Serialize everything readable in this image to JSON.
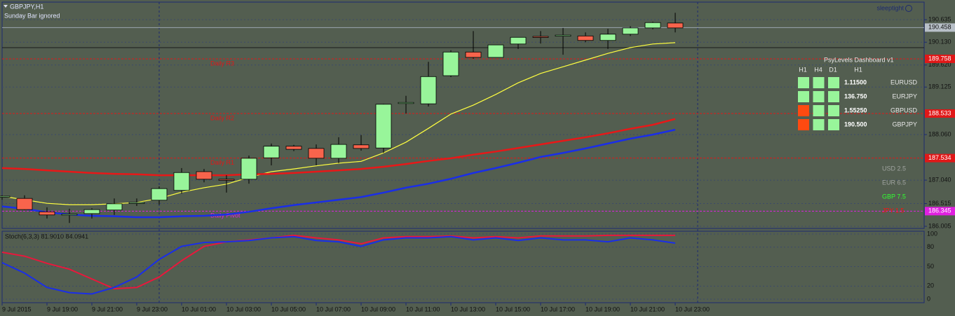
{
  "header": {
    "symbol": "GBPJPY,H1",
    "note": "Sunday Bar ignored",
    "user": "sleeptight"
  },
  "chart_data": [
    {
      "type": "candlestick",
      "categories": [
        "9 Jul 2015",
        null,
        "9 Jul 19:00",
        null,
        "9 Jul 21:00",
        null,
        "9 Jul 23:00",
        null,
        "10 Jul 01:00",
        null,
        "10 Jul 03:00",
        null,
        "10 Jul 05:00",
        null,
        "10 Jul 07:00",
        null,
        "10 Jul 09:00",
        null,
        "10 Jul 11:00",
        null,
        "10 Jul 13:00",
        null,
        "10 Jul 15:00",
        null,
        "10 Jul 17:00",
        null,
        "10 Jul 19:00",
        null,
        "10 Jul 21:00",
        null,
        "10 Jul 23:00"
      ],
      "open": [
        186.66,
        186.63,
        186.33,
        186.27,
        186.29,
        186.37,
        186.52,
        186.59,
        186.81,
        187.23,
        187.06,
        187.06,
        187.54,
        187.8,
        187.75,
        187.53,
        187.83,
        187.76,
        188.77,
        188.75,
        189.38,
        189.91,
        189.79,
        190.09,
        190.26,
        190.27,
        190.27,
        190.17,
        190.31,
        190.45,
        190.56
      ],
      "high": [
        186.7,
        186.7,
        186.43,
        186.4,
        186.41,
        186.63,
        186.63,
        186.9,
        187.31,
        187.29,
        187.15,
        187.59,
        187.86,
        187.83,
        187.84,
        188.0,
        188.05,
        188.75,
        188.93,
        189.69,
        189.95,
        190.38,
        190.07,
        190.24,
        190.38,
        190.45,
        190.35,
        190.43,
        190.49,
        190.59,
        190.79
      ],
      "low": [
        186.6,
        186.37,
        186.18,
        186.08,
        186.18,
        186.26,
        186.46,
        186.49,
        186.74,
        186.99,
        186.76,
        186.96,
        187.37,
        187.69,
        187.37,
        187.42,
        187.7,
        187.65,
        188.53,
        188.69,
        189.35,
        189.76,
        189.79,
        189.98,
        190.1,
        189.85,
        190.13,
        189.98,
        190.27,
        190.42,
        190.35
      ],
      "close": [
        186.68,
        186.38,
        186.26,
        186.28,
        186.38,
        186.51,
        186.54,
        186.85,
        187.21,
        187.06,
        187.04,
        187.53,
        187.8,
        187.73,
        187.53,
        187.84,
        187.75,
        188.74,
        188.78,
        189.36,
        189.91,
        189.79,
        190.07,
        190.24,
        190.25,
        190.29,
        190.17,
        190.31,
        190.45,
        190.57,
        190.45
      ],
      "up_color": "#98f59a",
      "down_color": "#f8644c",
      "series": [
        {
          "color": "#ffff40",
          "values": [
            186.68,
            186.6,
            186.52,
            186.49,
            186.49,
            186.51,
            186.54,
            186.63,
            186.77,
            186.87,
            186.95,
            187.1,
            187.23,
            187.29,
            187.36,
            187.42,
            187.46,
            187.65,
            187.89,
            188.2,
            188.52,
            188.72,
            188.96,
            189.22,
            189.43,
            189.58,
            189.73,
            189.88,
            190.01,
            190.09,
            190.12
          ]
        },
        {
          "color": "#e81818",
          "values": [
            187.31,
            187.29,
            187.26,
            187.23,
            187.2,
            187.18,
            187.17,
            187.15,
            187.15,
            187.15,
            187.15,
            187.17,
            187.18,
            187.2,
            187.23,
            187.26,
            187.29,
            187.34,
            187.4,
            187.47,
            187.53,
            187.61,
            187.68,
            187.76,
            187.84,
            187.92,
            188.0,
            188.09,
            188.19,
            188.28,
            188.41
          ]
        },
        {
          "color": "#1a2ee8",
          "values": [
            186.45,
            186.4,
            186.32,
            186.27,
            186.24,
            186.23,
            186.21,
            186.21,
            186.23,
            186.24,
            186.27,
            186.33,
            186.41,
            186.48,
            186.54,
            186.6,
            186.66,
            186.76,
            186.87,
            186.96,
            187.07,
            187.2,
            187.31,
            187.43,
            187.56,
            187.65,
            187.75,
            187.86,
            187.97,
            188.06,
            188.17
          ]
        }
      ],
      "levels": [
        {
          "label": "Daily R3",
          "value": 189.758,
          "color": "#e01818"
        },
        {
          "label": "Daily R2",
          "value": 188.533,
          "color": "#e01818"
        },
        {
          "label": "Daily R1",
          "value": 187.534,
          "color": "#e01818"
        },
        {
          "label": "Daily Pivot",
          "value": 186.345,
          "color": "#e020e0"
        }
      ],
      "current_price": 190.458,
      "ylim": [
        185.958,
        191.029
      ],
      "yticks": [
        190.635,
        {
          "value": 190.13,
          "label": "190.130"
        },
        {
          "value": 189.62,
          "label": "189.620"
        },
        189.125,
        {
          "value": 188.06,
          "label": "188.060"
        },
        {
          "value": 187.04,
          "label": "187.040"
        },
        186.515,
        186.005
      ],
      "grid": true
    },
    {
      "type": "line",
      "title": "Stoch(6,3,3) 81.9010 84.0941",
      "series": [
        {
          "color": "#e8183c",
          "values": [
            72,
            66,
            55,
            46,
            31,
            16,
            18,
            34,
            59,
            81,
            88,
            91,
            94,
            98,
            94,
            91,
            85,
            94,
            96,
            96,
            97,
            94,
            96,
            94,
            97,
            97,
            97,
            98,
            98,
            98,
            98
          ]
        },
        {
          "color": "#1a2ee8",
          "values": [
            56,
            40,
            18,
            10,
            8,
            18,
            34,
            61,
            81,
            87,
            88,
            90,
            94,
            96,
            90,
            88,
            81,
            91,
            94,
            94,
            96,
            91,
            94,
            90,
            94,
            91,
            91,
            88,
            94,
            91,
            86
          ]
        }
      ],
      "ylim": [
        -6.5,
        103.2
      ],
      "yticks": [
        100,
        80,
        50,
        20,
        0
      ],
      "grid": true
    }
  ],
  "dashboard": {
    "title": "PsyLevels Dashboard v1",
    "headers": [
      "H1",
      "H4",
      "D1",
      "H1"
    ],
    "rows": [
      {
        "symbol": "EURUSD",
        "price": "1.11500",
        "signals": [
          "#98f59a",
          "#98f59a",
          "#98f59a"
        ]
      },
      {
        "symbol": "EURJPY",
        "price": "136.750",
        "signals": [
          "#98f59a",
          "#98f59a",
          "#98f59a"
        ]
      },
      {
        "symbol": "GBPUSD",
        "price": "1.55250",
        "signals": [
          "#ff4a10",
          "#98f59a",
          "#98f59a"
        ]
      },
      {
        "symbol": "GBPJPY",
        "price": "190.500",
        "signals": [
          "#ff4a10",
          "#98f59a",
          "#98f59a"
        ]
      }
    ],
    "strength": [
      {
        "label": "USD 2.5",
        "color": "#a0a4a0"
      },
      {
        "label": "EUR 6.5",
        "color": "#a0a4a0"
      },
      {
        "label": "GBP 7.5",
        "color": "#30ff30"
      },
      {
        "label": "JPY 1.5",
        "color": "#ff1010"
      }
    ]
  }
}
